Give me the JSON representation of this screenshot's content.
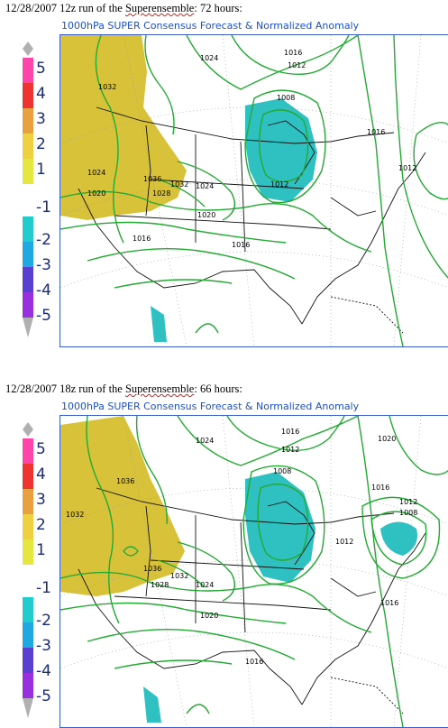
{
  "panels": [
    {
      "caption_prefix": "12/28/2007 12z run of the ",
      "caption_word": "Superensemble",
      "caption_suffix": ": 72 hours:",
      "map_title": "1000hPa SUPER Consensus Forecast & Normalized Anomaly",
      "isobar_labels": [
        "1032",
        "1024",
        "1016",
        "1012",
        "1008",
        "1016",
        "1012",
        "1024",
        "1020",
        "1036",
        "1028",
        "1032",
        "1024",
        "1020",
        "1016",
        "1016",
        "1012"
      ]
    },
    {
      "caption_prefix": "12/28/2007 18z run of the ",
      "caption_word": "Superensemble",
      "caption_suffix": ": 66 hours:",
      "map_title": "1000hPa SUPER Consensus Forecast & Normalized Anomaly",
      "isobar_labels": [
        "1036",
        "1032",
        "1024",
        "1016",
        "1012",
        "1008",
        "1020",
        "1016",
        "1012",
        "1008",
        "1036",
        "1028",
        "1032",
        "1024",
        "1020",
        "1012",
        "1016",
        "1016"
      ]
    }
  ],
  "colorbar": {
    "labels": [
      "5",
      "4",
      "3",
      "2",
      "1",
      "-1",
      "-2",
      "-3",
      "-4",
      "-5"
    ],
    "colors": {
      "c5": "#ff44aa",
      "c4": "#ee3333",
      "c3": "#e8a040",
      "c2": "#eed040",
      "c1": "#e6e640",
      "cm1": "#22cccc",
      "cm2": "#20a8e0",
      "cm3": "#5a40d0",
      "cm4": "#9930e0",
      "cm5": "#bb33dd"
    }
  },
  "colors": {
    "isobar": "#22aa33",
    "positive_anomaly": "#d8c23a",
    "negative_anomaly": "#2fc1c1",
    "border": "#3a5fcd"
  }
}
